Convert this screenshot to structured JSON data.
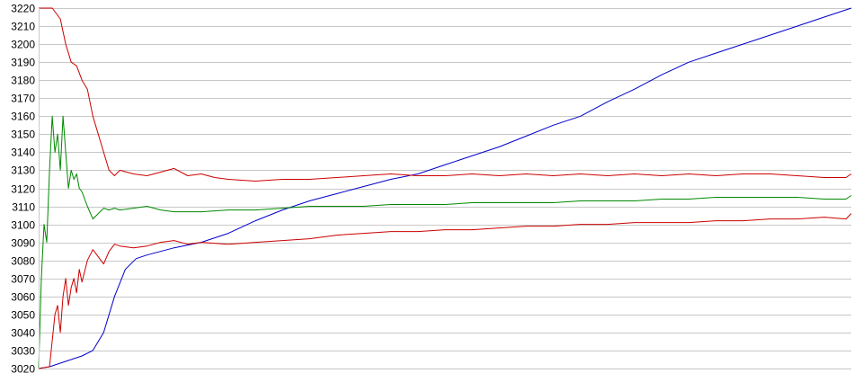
{
  "chart_data": {
    "type": "line",
    "title": "",
    "xlabel": "",
    "ylabel": "",
    "ylim": [
      3020,
      3220
    ],
    "xlim": [
      0,
      300
    ],
    "grid": true,
    "y_ticks": [
      "3020",
      "3030",
      "3040",
      "3050",
      "3060",
      "3070",
      "3080",
      "3090",
      "3100",
      "3110",
      "3120",
      "3130",
      "3140",
      "3150",
      "3160",
      "3170",
      "3180",
      "3190",
      "3200",
      "3210",
      "3220"
    ],
    "series": [
      {
        "color": "#0000cc",
        "x": [
          0,
          4,
          8,
          12,
          16,
          20,
          24,
          28,
          32,
          36,
          40,
          45,
          50,
          60,
          70,
          80,
          90,
          100,
          110,
          120,
          130,
          140,
          150,
          160,
          170,
          180,
          190,
          200,
          210,
          220,
          230,
          240,
          250,
          260,
          270,
          280,
          290,
          300
        ],
        "values": [
          3020,
          3021,
          3023,
          3025,
          3027,
          3030,
          3040,
          3060,
          3075,
          3081,
          3083,
          3085,
          3087,
          3090,
          3095,
          3102,
          3108,
          3113,
          3117,
          3121,
          3125,
          3128,
          3133,
          3138,
          3143,
          3149,
          3155,
          3160,
          3168,
          3175,
          3183,
          3190,
          3195,
          3200,
          3205,
          3210,
          3215,
          3220
        ]
      },
      {
        "color": "#cc0000",
        "x": [
          0,
          5,
          8,
          10,
          12,
          14,
          16,
          18,
          20,
          22,
          24,
          26,
          28,
          30,
          35,
          40,
          45,
          50,
          55,
          60,
          65,
          70,
          80,
          90,
          100,
          110,
          120,
          130,
          140,
          150,
          160,
          170,
          180,
          190,
          200,
          210,
          220,
          230,
          240,
          250,
          260,
          270,
          280,
          290,
          298,
          300
        ],
        "values": [
          3220,
          3220,
          3214,
          3200,
          3190,
          3188,
          3180,
          3175,
          3160,
          3150,
          3140,
          3130,
          3127,
          3130,
          3128,
          3127,
          3129,
          3131,
          3127,
          3128,
          3126,
          3125,
          3124,
          3125,
          3125,
          3126,
          3127,
          3128,
          3127,
          3127,
          3128,
          3127,
          3128,
          3127,
          3128,
          3127,
          3128,
          3127,
          3128,
          3127,
          3128,
          3128,
          3127,
          3126,
          3126,
          3128
        ]
      },
      {
        "color": "#008800",
        "x": [
          0,
          1,
          2,
          3,
          4,
          5,
          6,
          7,
          8,
          9,
          10,
          11,
          12,
          13,
          14,
          15,
          16,
          18,
          20,
          22,
          24,
          26,
          28,
          30,
          35,
          40,
          45,
          50,
          60,
          70,
          80,
          90,
          100,
          110,
          120,
          130,
          140,
          150,
          160,
          170,
          180,
          190,
          200,
          210,
          220,
          230,
          240,
          250,
          260,
          270,
          280,
          290,
          298,
          300
        ],
        "values": [
          3020,
          3070,
          3100,
          3090,
          3130,
          3160,
          3140,
          3150,
          3130,
          3160,
          3140,
          3120,
          3130,
          3125,
          3128,
          3120,
          3118,
          3110,
          3103,
          3106,
          3109,
          3108,
          3109,
          3108,
          3109,
          3110,
          3108,
          3107,
          3107,
          3108,
          3108,
          3109,
          3110,
          3110,
          3110,
          3111,
          3111,
          3111,
          3112,
          3112,
          3112,
          3112,
          3113,
          3113,
          3113,
          3114,
          3114,
          3115,
          3115,
          3115,
          3115,
          3114,
          3114,
          3116
        ]
      },
      {
        "color": "#cc0000",
        "x": [
          0,
          4,
          6,
          7,
          8,
          9,
          10,
          11,
          12,
          13,
          14,
          15,
          16,
          18,
          20,
          22,
          24,
          26,
          28,
          30,
          35,
          40,
          45,
          50,
          55,
          60,
          70,
          80,
          90,
          100,
          110,
          120,
          130,
          140,
          150,
          160,
          170,
          180,
          190,
          200,
          210,
          220,
          230,
          240,
          250,
          260,
          270,
          280,
          290,
          298,
          300
        ],
        "values": [
          3020,
          3021,
          3050,
          3055,
          3040,
          3060,
          3070,
          3055,
          3065,
          3070,
          3062,
          3075,
          3068,
          3080,
          3086,
          3082,
          3078,
          3085,
          3089,
          3088,
          3087,
          3088,
          3090,
          3091,
          3089,
          3090,
          3089,
          3090,
          3091,
          3092,
          3094,
          3095,
          3096,
          3096,
          3097,
          3097,
          3098,
          3099,
          3099,
          3100,
          3100,
          3101,
          3101,
          3101,
          3102,
          3102,
          3103,
          3103,
          3104,
          3103,
          3106
        ]
      }
    ]
  }
}
